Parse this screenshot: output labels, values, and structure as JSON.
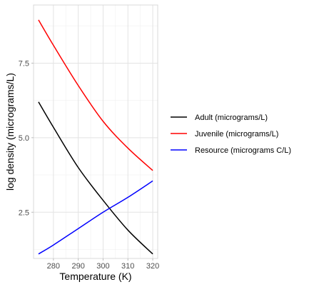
{
  "chart_data": {
    "type": "line",
    "title": "",
    "xlabel": "Temperature (K)",
    "ylabel": "log density (micrograms/L)",
    "xlim": [
      272,
      322
    ],
    "ylim": [
      0.95,
      9.45
    ],
    "x_ticks": [
      280,
      290,
      300,
      310,
      320
    ],
    "y_ticks": [
      2.5,
      5.0,
      7.5
    ],
    "y_tick_labels": [
      "2.5",
      "5.0",
      "7.5"
    ],
    "grid": true,
    "legend_position": "right",
    "x": [
      274,
      280,
      290,
      300,
      310,
      320
    ],
    "series": [
      {
        "name": "Adult (micrograms/L)",
        "color": "#000000",
        "values": [
          6.2,
          5.35,
          4.0,
          2.9,
          1.9,
          1.1
        ]
      },
      {
        "name": "Juvenile (micrograms/L)",
        "color": "#ff0000",
        "values": [
          8.95,
          8.1,
          6.75,
          5.55,
          4.65,
          3.9
        ]
      },
      {
        "name": "Resource (micrograms C/L)",
        "color": "#0000ff",
        "values": [
          1.1,
          1.4,
          1.95,
          2.5,
          3.0,
          3.55
        ]
      }
    ]
  }
}
